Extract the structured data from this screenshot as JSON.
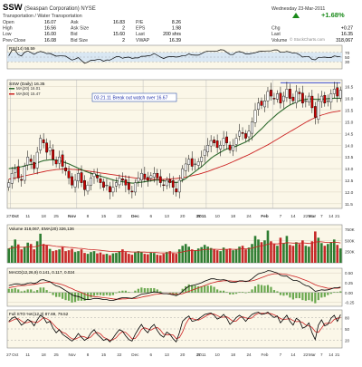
{
  "header": {
    "symbol": "SSW",
    "company": "(Seaspan Corporation) NYSE",
    "sector": "Transportation / Water Transportation",
    "date": "Wednesday 23-Mar-2011",
    "change_pct": "+1.68%",
    "watermark": "© StockCharts.com",
    "rows": [
      [
        {
          "k": "Open",
          "v": "16.07"
        },
        {
          "k": "Ask",
          "v": "16.83"
        },
        {
          "k": "P/E",
          "v": "8.26"
        },
        {
          "k": "",
          "v": ""
        }
      ],
      [
        {
          "k": "High",
          "v": "16.56"
        },
        {
          "k": "Ask Size",
          "v": "2"
        },
        {
          "k": "EPS",
          "v": "1.98"
        },
        {
          "k": "Chg",
          "v": "+0.27"
        }
      ],
      [
        {
          "k": "Low",
          "v": "16.00"
        },
        {
          "k": "Bid",
          "v": "15.60"
        },
        {
          "k": "Last",
          "v": "200 shrs"
        },
        {
          "k": "Last",
          "v": "16.35"
        }
      ],
      [
        {
          "k": "Prev Close",
          "v": "16.08"
        },
        {
          "k": "Bid Size",
          "v": "2"
        },
        {
          "k": "VWAP",
          "v": "16.39"
        },
        {
          "k": "Volume",
          "v": "318,067"
        }
      ]
    ]
  },
  "panels": {
    "rsi_label": "RSI(14) 56.59",
    "rsi_ticks": [
      "70",
      "50",
      "30"
    ],
    "price_label": "SSW (Daily) 16.35",
    "ma_labels": [
      "MA(20) 16.01",
      "MA(50) 15.47"
    ],
    "annotation": "03.21.11 Break out watch over 16.67",
    "volume_label": "Volume 318,067, EMA(20) 326,136",
    "volume_ticks": [
      "750K",
      "500K",
      "250K"
    ],
    "macd_label": "MACD(12,26,9) 0.141, 0.117, 0.024",
    "macd_ticks": [
      "0.50",
      "0.25",
      "0.00",
      "-0.25"
    ],
    "sto_label": "Full STO %K(12,3) 87.69, 79.52",
    "sto_ticks": [
      "80",
      "50",
      "20"
    ]
  },
  "colors": {
    "ma20": "#2f6b2f",
    "ma50": "#cc2222",
    "up": "#ffffff",
    "down": "#cc0000",
    "panel_bg": "#fbf7e8",
    "rsi_fill": "#d9e7f3",
    "macd_line": "#000000",
    "signal": "#cc2222",
    "histogram": "#6aa84f"
  },
  "chart_data": {
    "type": "candlestick",
    "title": "SSW (Daily) 16.35",
    "x_ticks": [
      "27",
      "Oct",
      "11",
      "18",
      "25",
      "Nov",
      "8",
      "15",
      "22",
      "Dec",
      "6",
      "13",
      "20",
      "27",
      "2011",
      "10",
      "18",
      "24",
      "Feb",
      "7",
      "14",
      "22",
      "Mar",
      "7",
      "14",
      "21"
    ],
    "y_ticks": [
      11.5,
      12.0,
      12.5,
      13.0,
      13.5,
      14.0,
      14.5,
      15.0,
      15.5,
      16.0,
      16.5
    ],
    "ylim": [
      11.3,
      16.8
    ],
    "close": [
      12.4,
      12.8,
      13.0,
      12.6,
      12.5,
      13.1,
      13.5,
      13.3,
      13.0,
      13.7,
      14.3,
      14.1,
      13.7,
      13.9,
      13.4,
      13.2,
      13.5,
      13.1,
      12.9,
      12.6,
      12.3,
      12.5,
      12.8,
      12.4,
      12.1,
      12.3,
      12.6,
      12.8,
      12.6,
      12.4,
      12.2,
      12.3,
      12.0,
      12.2,
      12.4,
      12.6,
      12.5,
      12.3,
      12.1,
      12.0,
      12.4,
      12.6,
      12.8,
      12.6,
      12.5,
      12.7,
      12.8,
      12.6,
      12.4,
      12.3,
      12.5,
      12.4,
      12.2,
      12.0,
      12.5,
      13.0,
      13.2,
      13.4,
      13.1,
      13.2,
      13.3,
      13.5,
      13.8,
      14.0,
      14.2,
      14.1,
      13.9,
      14.0,
      14.3,
      14.1,
      13.8,
      14.0,
      14.3,
      14.6,
      14.5,
      14.3,
      14.6,
      15.0,
      15.5,
      15.8,
      15.7,
      15.9,
      16.3,
      16.1,
      16.0,
      16.2,
      15.8,
      16.1,
      16.4,
      16.0,
      15.9,
      16.3,
      16.2,
      15.8,
      15.9,
      16.1,
      15.6,
      15.2,
      15.9,
      16.1,
      15.8,
      15.9,
      16.2,
      16.4,
      16.1,
      16.35
    ],
    "ma20": [
      13.0,
      13.02,
      13.04,
      13.06,
      13.08,
      13.12,
      13.16,
      13.18,
      13.2,
      13.24,
      13.3,
      13.34,
      13.36,
      13.38,
      13.38,
      13.36,
      13.34,
      13.3,
      13.25,
      13.2,
      13.14,
      13.08,
      13.02,
      12.96,
      12.9,
      12.85,
      12.8,
      12.76,
      12.72,
      12.68,
      12.64,
      12.6,
      12.56,
      12.52,
      12.48,
      12.46,
      12.44,
      12.42,
      12.4,
      12.38,
      12.38,
      12.4,
      12.42,
      12.44,
      12.46,
      12.48,
      12.5,
      12.52,
      12.5,
      12.48,
      12.46,
      12.44,
      12.42,
      12.4,
      12.44,
      12.5,
      12.58,
      12.68,
      12.78,
      12.88,
      12.98,
      13.08,
      13.2,
      13.32,
      13.44,
      13.54,
      13.62,
      13.7,
      13.78,
      13.84,
      13.88,
      13.92,
      13.96,
      14.02,
      14.08,
      14.14,
      14.22,
      14.32,
      14.44,
      14.58,
      14.7,
      14.84,
      14.98,
      15.1,
      15.22,
      15.34,
      15.44,
      15.54,
      15.64,
      15.72,
      15.78,
      15.84,
      15.9,
      15.94,
      15.96,
      15.98,
      15.98,
      15.96,
      15.96,
      15.97,
      15.98,
      15.99,
      16.0,
      16.01,
      16.01,
      16.01
    ],
    "ma50": [
      12.55,
      12.58,
      12.6,
      12.63,
      12.66,
      12.69,
      12.72,
      12.75,
      12.78,
      12.81,
      12.84,
      12.87,
      12.9,
      12.92,
      12.94,
      12.96,
      12.97,
      12.98,
      12.98,
      12.98,
      12.97,
      12.96,
      12.95,
      12.94,
      12.92,
      12.9,
      12.88,
      12.86,
      12.84,
      12.82,
      12.8,
      12.78,
      12.76,
      12.74,
      12.72,
      12.7,
      12.68,
      12.66,
      12.64,
      12.62,
      12.6,
      12.58,
      12.57,
      12.56,
      12.55,
      12.54,
      12.54,
      12.54,
      12.54,
      12.54,
      12.55,
      12.56,
      12.57,
      12.58,
      12.6,
      12.62,
      12.64,
      12.67,
      12.7,
      12.73,
      12.76,
      12.8,
      12.84,
      12.88,
      12.93,
      12.98,
      13.03,
      13.08,
      13.13,
      13.18,
      13.24,
      13.3,
      13.36,
      13.42,
      13.48,
      13.54,
      13.6,
      13.67,
      13.74,
      13.81,
      13.88,
      13.95,
      14.02,
      14.1,
      14.18,
      14.26,
      14.34,
      14.42,
      14.5,
      14.58,
      14.66,
      14.74,
      14.82,
      14.9,
      14.98,
      15.05,
      15.12,
      15.18,
      15.24,
      15.29,
      15.33,
      15.37,
      15.4,
      15.43,
      15.45,
      15.47
    ],
    "resistance": 16.67,
    "volume_k": [
      320,
      380,
      520,
      410,
      300,
      360,
      450,
      420,
      300,
      480,
      650,
      420,
      390,
      310,
      260,
      280,
      300,
      350,
      260,
      280,
      310,
      240,
      260,
      300,
      220,
      200,
      240,
      260,
      210,
      230,
      190,
      200,
      170,
      210,
      220,
      260,
      300,
      240,
      200,
      180,
      230,
      260,
      240,
      200,
      190,
      230,
      220,
      180,
      170,
      200,
      240,
      260,
      210,
      200,
      300,
      380,
      420,
      360,
      300,
      280,
      320,
      350,
      400,
      360,
      330,
      300,
      280,
      260,
      340,
      300,
      320,
      280,
      300,
      360,
      380,
      300,
      340,
      420,
      600,
      520,
      460,
      500,
      720,
      480,
      420,
      380,
      560,
      440,
      600,
      400,
      380,
      460,
      420,
      500,
      380,
      360,
      480,
      700,
      560,
      440,
      380,
      420,
      460,
      520,
      400,
      320
    ],
    "macd": [
      0.18,
      0.2,
      0.22,
      0.22,
      0.2,
      0.21,
      0.24,
      0.25,
      0.23,
      0.26,
      0.32,
      0.33,
      0.3,
      0.28,
      0.22,
      0.17,
      0.15,
      0.1,
      0.05,
      0.0,
      -0.06,
      -0.09,
      -0.1,
      -0.13,
      -0.17,
      -0.18,
      -0.17,
      -0.15,
      -0.15,
      -0.16,
      -0.18,
      -0.18,
      -0.2,
      -0.2,
      -0.18,
      -0.15,
      -0.13,
      -0.13,
      -0.14,
      -0.15,
      -0.12,
      -0.08,
      -0.04,
      -0.03,
      -0.02,
      0.0,
      0.02,
      0.01,
      -0.01,
      -0.03,
      -0.03,
      -0.04,
      -0.06,
      -0.08,
      -0.04,
      0.03,
      0.1,
      0.16,
      0.18,
      0.2,
      0.22,
      0.25,
      0.29,
      0.32,
      0.35,
      0.35,
      0.33,
      0.32,
      0.33,
      0.31,
      0.27,
      0.26,
      0.27,
      0.3,
      0.3,
      0.28,
      0.3,
      0.35,
      0.42,
      0.48,
      0.5,
      0.52,
      0.56,
      0.55,
      0.52,
      0.5,
      0.44,
      0.42,
      0.42,
      0.36,
      0.31,
      0.31,
      0.28,
      0.22,
      0.18,
      0.16,
      0.1,
      0.03,
      0.05,
      0.07,
      0.06,
      0.07,
      0.09,
      0.12,
      0.12,
      0.14
    ],
    "signal": [
      0.12,
      0.14,
      0.15,
      0.17,
      0.18,
      0.18,
      0.19,
      0.2,
      0.21,
      0.22,
      0.24,
      0.25,
      0.26,
      0.27,
      0.26,
      0.24,
      0.22,
      0.2,
      0.17,
      0.13,
      0.1,
      0.06,
      0.03,
      0.0,
      -0.04,
      -0.07,
      -0.09,
      -0.1,
      -0.11,
      -0.12,
      -0.13,
      -0.14,
      -0.15,
      -0.16,
      -0.17,
      -0.17,
      -0.16,
      -0.16,
      -0.15,
      -0.15,
      -0.15,
      -0.14,
      -0.12,
      -0.1,
      -0.09,
      -0.07,
      -0.05,
      -0.04,
      -0.03,
      -0.03,
      -0.03,
      -0.03,
      -0.03,
      -0.04,
      -0.04,
      -0.03,
      0.0,
      0.03,
      0.06,
      0.09,
      0.12,
      0.15,
      0.18,
      0.21,
      0.24,
      0.26,
      0.28,
      0.29,
      0.3,
      0.3,
      0.3,
      0.29,
      0.29,
      0.29,
      0.29,
      0.29,
      0.29,
      0.3,
      0.32,
      0.35,
      0.38,
      0.41,
      0.44,
      0.46,
      0.48,
      0.48,
      0.48,
      0.47,
      0.46,
      0.44,
      0.42,
      0.4,
      0.37,
      0.34,
      0.31,
      0.28,
      0.24,
      0.2,
      0.17,
      0.15,
      0.13,
      0.11,
      0.11,
      0.11,
      0.11,
      0.12
    ],
    "sto_k": [
      70,
      78,
      82,
      72,
      60,
      66,
      75,
      70,
      58,
      74,
      86,
      80,
      66,
      70,
      52,
      40,
      48,
      36,
      30,
      24,
      18,
      26,
      38,
      28,
      20,
      26,
      40,
      48,
      36,
      28,
      20,
      24,
      16,
      26,
      38,
      48,
      44,
      32,
      22,
      18,
      36,
      50,
      62,
      48,
      40,
      54,
      62,
      46,
      34,
      28,
      42,
      36,
      24,
      16,
      40,
      70,
      78,
      84,
      70,
      72,
      76,
      82,
      88,
      90,
      92,
      86,
      76,
      80,
      88,
      78,
      62,
      70,
      80,
      86,
      80,
      70,
      80,
      88,
      92,
      94,
      88,
      90,
      94,
      86,
      80,
      84,
      66,
      76,
      86,
      70,
      60,
      78,
      72,
      52,
      56,
      66,
      40,
      22,
      60,
      74,
      58,
      62,
      78,
      86,
      70,
      87.69
    ],
    "sto_d": [
      68,
      72,
      76,
      77,
      71,
      66,
      67,
      70,
      68,
      67,
      73,
      80,
      77,
      72,
      63,
      54,
      47,
      41,
      38,
      30,
      24,
      23,
      27,
      31,
      29,
      25,
      29,
      38,
      41,
      37,
      28,
      24,
      20,
      22,
      27,
      37,
      43,
      41,
      33,
      24,
      25,
      35,
      49,
      53,
      50,
      47,
      52,
      54,
      47,
      36,
      35,
      35,
      34,
      25,
      27,
      42,
      63,
      77,
      77,
      75,
      73,
      77,
      82,
      87,
      90,
      89,
      85,
      81,
      81,
      82,
      76,
      70,
      71,
      79,
      82,
      79,
      77,
      79,
      87,
      91,
      91,
      91,
      91,
      90,
      87,
      83,
      77,
      75,
      76,
      77,
      72,
      69,
      70,
      67,
      60,
      58,
      54,
      43,
      41,
      52,
      64,
      65,
      66,
      75,
      78,
      79.52
    ]
  }
}
